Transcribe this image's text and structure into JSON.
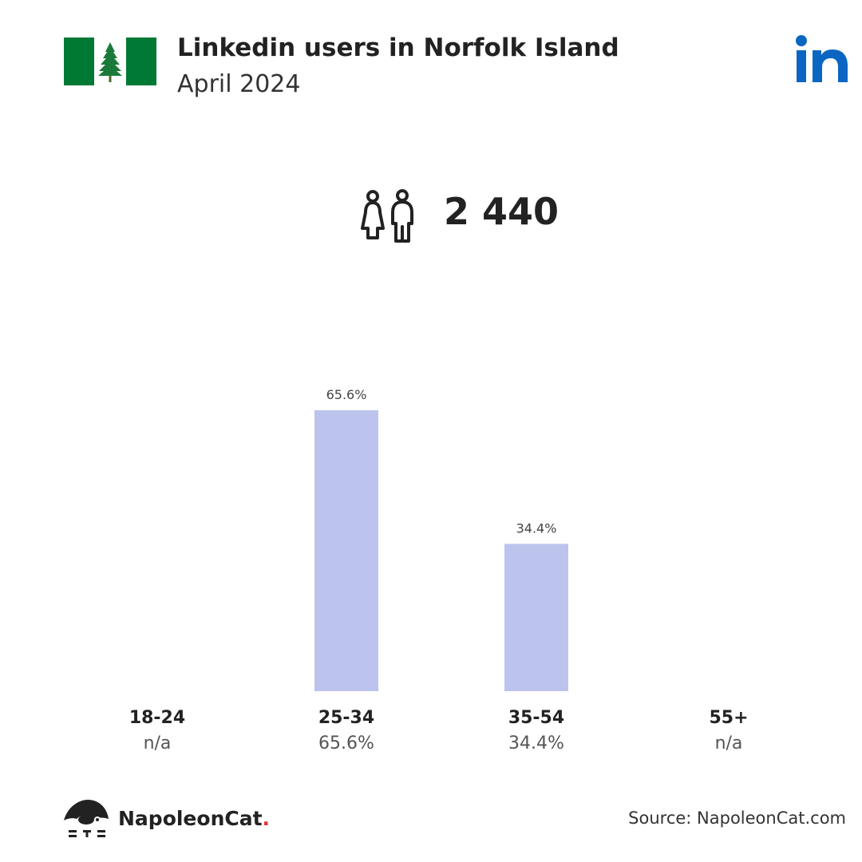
{
  "header": {
    "title": "Linkedin users in Norfolk Island",
    "subtitle": "April 2024",
    "flag_icon": "norfolk-island-flag-icon",
    "brand_icon": "linkedin-logo-icon",
    "brand_color": "#0a66c2"
  },
  "summary": {
    "icon": "people-icon",
    "total": "2 440"
  },
  "chart_data": {
    "type": "bar",
    "categories": [
      "18-24",
      "25-34",
      "35-54",
      "55+"
    ],
    "values": [
      null,
      65.6,
      34.4,
      null
    ],
    "value_labels": [
      "n/a",
      "65.6%",
      "34.4%",
      "n/a"
    ],
    "bar_labels": [
      "",
      "65.6%",
      "34.4%",
      ""
    ],
    "ylim": [
      0,
      65.6
    ],
    "bar_color": "#bcc4ee",
    "grid": false,
    "legend": "none"
  },
  "footer": {
    "brand": "NapoleonCat",
    "brand_dot": ".",
    "brand_icon": "napoleoncat-logo-icon",
    "source": "Source: NapoleonCat.com"
  }
}
